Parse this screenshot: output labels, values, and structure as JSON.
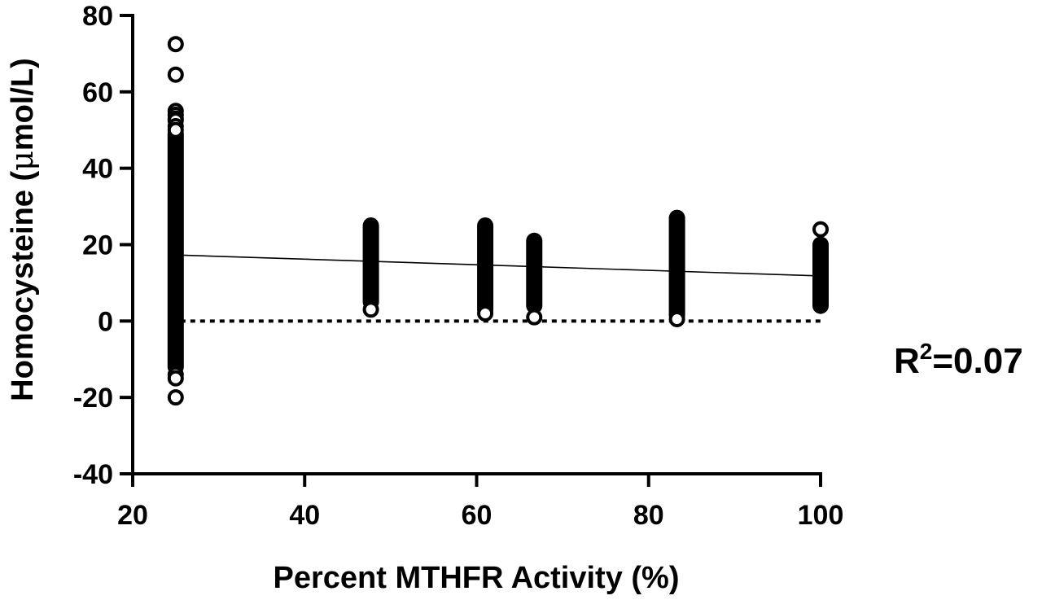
{
  "chart_data": {
    "type": "scatter",
    "title": "",
    "xlabel": "Percent MTHFR Activity (%)",
    "ylabel_prefix": "Homocysteine (",
    "ylabel_mu": "μ",
    "ylabel_suffix": "mol/L)",
    "xlim": [
      20,
      100
    ],
    "ylim": [
      -40,
      80
    ],
    "x_ticks": [
      "20",
      "40",
      "60",
      "80",
      "100"
    ],
    "y_ticks": [
      "-40",
      "-20",
      "0",
      "20",
      "40",
      "60",
      "80"
    ],
    "grid": false,
    "legend": "none",
    "marker": "open-circle",
    "annotation": {
      "r_label": "R",
      "r_sup": "2",
      "r_value": "=0.07"
    },
    "reference_line": {
      "y": 0,
      "style": "dotted",
      "x_range": [
        25,
        100
      ]
    },
    "regression": {
      "x": [
        25,
        100
      ],
      "y": [
        17.3,
        11.8
      ]
    },
    "groups": [
      {
        "x": 25,
        "dense_range": [
          -12,
          49
        ],
        "outliers": [
          72.5,
          64.5,
          55,
          54,
          53,
          52.5,
          51,
          50,
          -14,
          -15,
          -20
        ]
      },
      {
        "x": 47.7,
        "dense_range": [
          5,
          25
        ],
        "outliers": [
          3
        ]
      },
      {
        "x": 61,
        "dense_range": [
          3,
          25
        ],
        "outliers": [
          2
        ]
      },
      {
        "x": 66.7,
        "dense_range": [
          4,
          21
        ],
        "outliers": [
          1
        ]
      },
      {
        "x": 83.3,
        "dense_range": [
          1.5,
          27
        ],
        "outliers": [
          0.5
        ]
      },
      {
        "x": 100,
        "dense_range": [
          4,
          20
        ],
        "outliers": [
          24
        ]
      }
    ]
  }
}
